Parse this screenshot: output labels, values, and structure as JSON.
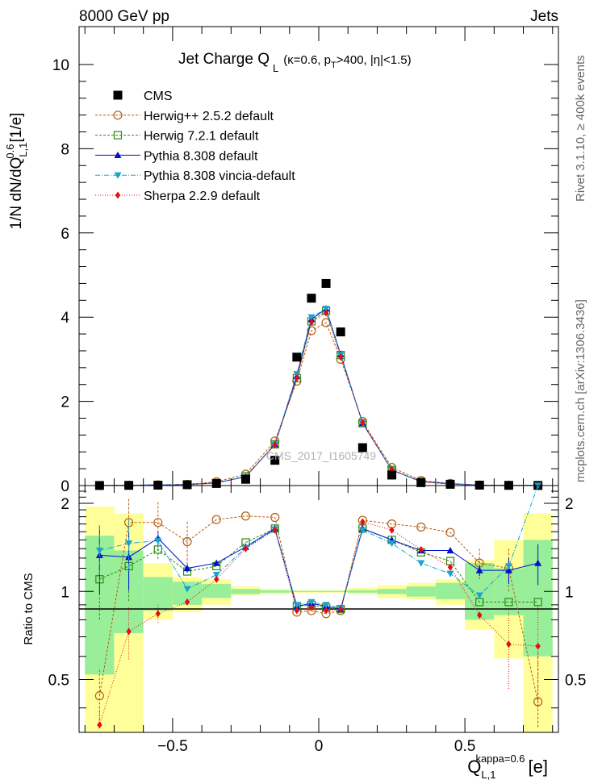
{
  "header": {
    "left": "8000 GeV pp",
    "right": "Jets",
    "side_top": "Rivet 3.1.10, ≥ 400k events",
    "side_bottom": "mcplots.cern.ch [arXiv:1306.3436]"
  },
  "chart_data": [
    {
      "type": "scatter",
      "panel": "main",
      "title": "Jet Charge Q_L (κ=0.6, p_T>400, |η|<1.5)",
      "title_main": "Jet Charge Q",
      "title_sub": "L",
      "title_details": "(κ=0.6, p",
      "title_details_sub": "T",
      "title_details_rest": ">400, |η|<1.5)",
      "ylabel": "1/N dN/dQ",
      "ylabel_sup": "0.6",
      "ylabel_sub": "L,1",
      "ylabel_unit": "[1/e]",
      "watermark": "CMS_2017_I1605749",
      "xlim": [
        -0.82,
        0.82
      ],
      "ylim": [
        0,
        10.9
      ],
      "yticks": [
        0,
        2,
        4,
        6,
        8,
        10
      ],
      "x": [
        -0.75,
        -0.65,
        -0.55,
        -0.45,
        -0.35,
        -0.25,
        -0.15,
        -0.075,
        -0.025,
        0.025,
        0.075,
        0.15,
        0.25,
        0.35,
        0.45,
        0.55,
        0.65,
        0.75
      ],
      "legend": [
        "CMS",
        "Herwig++ 2.5.2 default",
        "Herwig 7.2.1 default",
        "Pythia 8.308 default",
        "Pythia 8.308 vincia-default",
        "Sherpa 2.2.9 default"
      ],
      "series": [
        {
          "name": "CMS",
          "color": "#000000",
          "marker": "square-filled",
          "values": [
            0.002,
            0.005,
            0.01,
            0.02,
            0.05,
            0.15,
            0.6,
            3.05,
            4.45,
            4.8,
            3.65,
            0.9,
            0.25,
            0.07,
            0.03,
            0.01,
            0.005,
            0.003
          ]
        },
        {
          "name": "Herwig++ 2.5.2 default",
          "color": "#b85c12",
          "marker": "circle-open",
          "dash": "3,2",
          "values": [
            0.001,
            0.008,
            0.017,
            0.03,
            0.088,
            0.27,
            1.06,
            2.48,
            3.68,
            3.87,
            3.0,
            1.52,
            0.43,
            0.12,
            0.05,
            0.012,
            0.007,
            0.001
          ]
        },
        {
          "name": "Herwig 7.2.1 default",
          "color": "#2c8a13",
          "marker": "square-open",
          "dash": "3,2",
          "values": [
            0.002,
            0.006,
            0.014,
            0.022,
            0.06,
            0.22,
            0.98,
            2.55,
            3.9,
            4.15,
            3.1,
            1.48,
            0.37,
            0.09,
            0.039,
            0.009,
            0.005,
            0.003
          ]
        },
        {
          "name": "Pythia 8.308 default",
          "color": "#0011cc",
          "marker": "triangle-up",
          "dash": "",
          "values": [
            0.003,
            0.007,
            0.016,
            0.024,
            0.064,
            0.21,
            0.98,
            2.6,
            3.95,
            4.2,
            3.12,
            1.48,
            0.37,
            0.097,
            0.042,
            0.012,
            0.006,
            0.004
          ]
        },
        {
          "name": "Pythia 8.308 vincia-default",
          "color": "#1aa3cc",
          "marker": "triangle-down",
          "dash": "6,2,1,2",
          "values": [
            0.003,
            0.008,
            0.015,
            0.021,
            0.062,
            0.21,
            0.98,
            2.65,
            4.0,
            4.2,
            3.1,
            1.48,
            0.37,
            0.09,
            0.036,
            0.01,
            0.006,
            0.008
          ]
        },
        {
          "name": "Sherpa 2.2.9 default",
          "color": "#e01010",
          "marker": "diamond",
          "dash": "1,2",
          "values": [
            0.001,
            0.004,
            0.008,
            0.018,
            0.055,
            0.21,
            0.97,
            2.55,
            3.88,
            4.1,
            3.05,
            1.5,
            0.38,
            0.09,
            0.035,
            0.008,
            0.003,
            0.002
          ]
        }
      ]
    },
    {
      "type": "scatter",
      "panel": "ratio",
      "ylabel": "Ratio to CMS",
      "xlabel": "Q",
      "xlabel_sup": "kappa=0.6",
      "xlabel_sub": "L,1",
      "xlabel_unit": "[e]",
      "xlim": [
        -0.82,
        0.82
      ],
      "ylim": [
        0.33,
        2.3
      ],
      "xticks": [
        -0.5,
        0,
        0.5
      ],
      "xtick_labels": [
        "−0.5",
        "0",
        "0.5"
      ],
      "yticks": [
        0.5,
        1,
        2
      ],
      "ytick_labels": [
        "0.5",
        "1",
        "2"
      ],
      "band_edges": [
        -0.8,
        -0.7,
        -0.6,
        -0.5,
        -0.4,
        -0.3,
        -0.2,
        -0.1,
        -0.05,
        0,
        0.05,
        0.1,
        0.2,
        0.3,
        0.4,
        0.5,
        0.6,
        0.7,
        0.8
      ],
      "band_stat": [
        [
          0.52,
          1.55
        ],
        [
          0.72,
          1.38
        ],
        [
          0.86,
          1.12
        ],
        [
          0.9,
          1.08
        ],
        [
          0.95,
          1.06
        ],
        [
          0.98,
          1.02
        ],
        [
          0.99,
          1.01
        ],
        [
          0.995,
          1.005
        ],
        [
          0.995,
          1.005
        ],
        [
          0.995,
          1.005
        ],
        [
          0.995,
          1.005
        ],
        [
          0.99,
          1.01
        ],
        [
          0.98,
          1.02
        ],
        [
          0.96,
          1.04
        ],
        [
          0.94,
          1.07
        ],
        [
          0.8,
          1.25
        ],
        [
          0.83,
          1.2
        ],
        [
          0.6,
          1.5
        ]
      ],
      "band_total": [
        [
          0.33,
          1.95
        ],
        [
          0.33,
          1.85
        ],
        [
          0.8,
          1.25
        ],
        [
          0.85,
          1.12
        ],
        [
          0.9,
          1.1
        ],
        [
          0.97,
          1.04
        ],
        [
          0.98,
          1.02
        ],
        [
          0.99,
          1.01
        ],
        [
          0.99,
          1.01
        ],
        [
          0.99,
          1.01
        ],
        [
          0.99,
          1.01
        ],
        [
          0.98,
          1.03
        ],
        [
          0.95,
          1.05
        ],
        [
          0.94,
          1.07
        ],
        [
          0.9,
          1.1
        ],
        [
          0.74,
          1.28
        ],
        [
          0.59,
          1.5
        ],
        [
          0.33,
          1.85
        ]
      ],
      "series": [
        {
          "name": "Herwig++ 2.5.2 default",
          "color": "#b85c12",
          "marker": "circle-open",
          "dash": "3,2",
          "values": [
            0.44,
            1.72,
            1.72,
            1.48,
            1.76,
            1.81,
            1.79,
            0.85,
            0.86,
            0.84,
            0.86,
            1.75,
            1.7,
            1.66,
            1.59,
            1.25,
            1.2,
            0.42
          ],
          "err": [
            0.1,
            0.35,
            0.3,
            0.25,
            0,
            0,
            0,
            0,
            0,
            0,
            0,
            0,
            0,
            0,
            0,
            0.15,
            0.2,
            0.2
          ]
        },
        {
          "name": "Herwig 7.2.1 default",
          "color": "#2c8a13",
          "marker": "square-open",
          "dash": "3,2",
          "values": [
            1.1,
            1.22,
            1.39,
            1.17,
            1.22,
            1.47,
            1.64,
            0.89,
            0.9,
            0.88,
            0.87,
            1.64,
            1.5,
            1.36,
            1.27,
            0.92,
            0.92,
            0.92
          ],
          "err": [
            0.3,
            0.3,
            0.1,
            0,
            0,
            0,
            0,
            0,
            0,
            0,
            0,
            0,
            0,
            0,
            0,
            0,
            0,
            0
          ]
        },
        {
          "name": "Pythia 8.308 default",
          "color": "#0011cc",
          "marker": "triangle-up",
          "dash": "",
          "values": [
            1.33,
            1.31,
            1.52,
            1.2,
            1.25,
            1.42,
            1.64,
            0.89,
            0.91,
            0.89,
            0.87,
            1.64,
            1.5,
            1.38,
            1.38,
            1.18,
            1.18,
            1.25
          ],
          "err": [
            0.35,
            0.3,
            0.08,
            0.04,
            0,
            0,
            0,
            0,
            0,
            0,
            0,
            0,
            0,
            0,
            0,
            0.05,
            0.12,
            0.2
          ]
        },
        {
          "name": "Pythia 8.308 vincia-default",
          "color": "#1aa3cc",
          "marker": "triangle-down",
          "dash": "6,2,1,2",
          "values": [
            1.38,
            1.46,
            1.49,
            1.02,
            1.14,
            1.41,
            1.63,
            0.9,
            0.92,
            0.9,
            0.88,
            1.62,
            1.46,
            1.25,
            1.15,
            0.97,
            1.22,
            2.3
          ],
          "err": [
            0.3,
            0.3,
            0.1,
            0,
            0,
            0,
            0,
            0,
            0,
            0,
            0,
            0,
            0,
            0,
            0,
            0,
            0,
            0
          ]
        },
        {
          "name": "Sherpa 2.2.9 default",
          "color": "#e01010",
          "marker": "diamond",
          "dash": "1,2",
          "values": [
            0.35,
            0.73,
            0.84,
            0.92,
            1.1,
            1.4,
            1.62,
            0.86,
            0.88,
            0.86,
            0.87,
            1.73,
            1.62,
            1.39,
            1.21,
            0.83,
            0.66,
            0.65
          ],
          "err": [
            0.05,
            0.15,
            0.06,
            0,
            0,
            0,
            0,
            0,
            0,
            0,
            0,
            0,
            0,
            0,
            0,
            0,
            0.2,
            0.25
          ]
        }
      ]
    }
  ]
}
